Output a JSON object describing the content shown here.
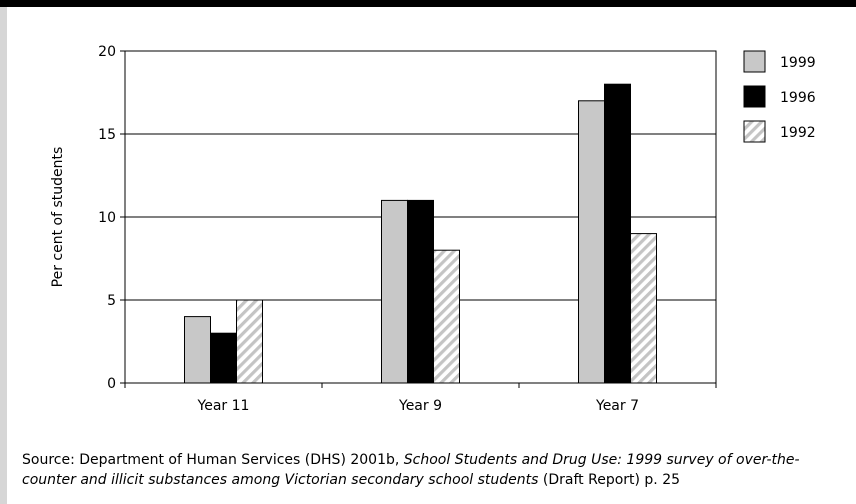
{
  "chart_data": {
    "type": "bar",
    "categories": [
      "Year 11",
      "Year 9",
      "Year 7"
    ],
    "series": [
      {
        "name": "1999",
        "values": [
          4,
          11,
          17
        ],
        "fill": "#c8c8c8"
      },
      {
        "name": "1996",
        "values": [
          3,
          11,
          18
        ],
        "fill": "#000000"
      },
      {
        "name": "1992",
        "values": [
          5,
          8,
          9
        ],
        "fill": "hatched"
      }
    ],
    "title": "",
    "xlabel": "",
    "ylabel": "Per cent of students",
    "ylim": [
      0,
      20
    ],
    "yticks": [
      0,
      5,
      10,
      15,
      20
    ],
    "grid": true,
    "legend_position": "right"
  },
  "source": {
    "prefix": "Source: Department of Human Services (DHS) 2001b, ",
    "italic": "School Students and Drug Use: 1999 survey of over-the-counter and illicit substances among Victorian secondary school students",
    "suffix": " (Draft Report) p. 25"
  }
}
